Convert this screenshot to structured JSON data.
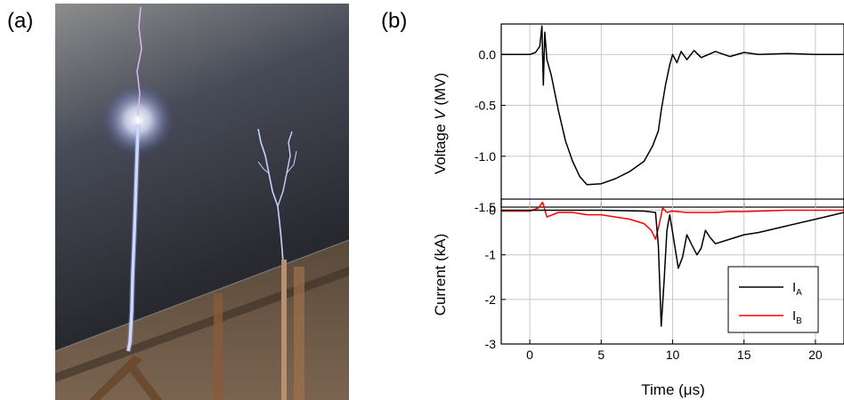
{
  "panels": {
    "a_label": "(a)",
    "b_label": "(b)"
  },
  "photo": {
    "description_icon": "lightning-discharge-photo-icon"
  },
  "colors": {
    "series_a": "#000000",
    "series_b": "#ff0000",
    "grid": "#c8c8c8"
  },
  "chart_data": [
    {
      "type": "line",
      "title": "",
      "xlabel": "",
      "ylabel": "Voltage V (MV)",
      "ylabel_parts": {
        "prefix": "Voltage ",
        "italic": "V",
        "suffix": " (MV)"
      },
      "xlim": [
        -2,
        22
      ],
      "ylim": [
        -1.5,
        0.3
      ],
      "yticks": [
        0.0,
        -0.5,
        -1.0,
        -1.5
      ],
      "ytick_labels": [
        "0.0",
        "-0.5",
        "-1.0",
        "-1.5"
      ],
      "grid": true,
      "series": [
        {
          "x": [
            -2,
            0,
            0.4,
            0.7,
            0.85,
            0.95,
            1.05,
            1.2,
            1.5,
            2,
            2.5,
            3,
            3.5,
            4,
            5,
            6,
            7,
            8,
            8.6,
            9,
            9.2,
            9.5,
            9.8,
            10,
            10.3,
            10.6,
            11,
            11.5,
            12,
            13,
            14,
            15,
            16,
            18,
            20,
            22
          ],
          "y": [
            0.0,
            0.0,
            0.02,
            0.08,
            0.28,
            -0.3,
            0.22,
            -0.05,
            -0.2,
            -0.55,
            -0.85,
            -1.05,
            -1.2,
            -1.28,
            -1.27,
            -1.22,
            -1.15,
            -1.05,
            -0.9,
            -0.75,
            -0.55,
            -0.3,
            -0.1,
            0.0,
            -0.08,
            0.03,
            -0.05,
            0.04,
            -0.03,
            0.03,
            -0.02,
            0.02,
            0.0,
            0.01,
            0.0,
            0.0
          ]
        }
      ]
    },
    {
      "type": "line",
      "title": "",
      "xlabel": "Time (μs)",
      "ylabel": "Current (kA)",
      "xlim": [
        -2,
        22
      ],
      "ylim": [
        -3,
        0.25
      ],
      "xticks": [
        0,
        5,
        10,
        15,
        20
      ],
      "xtick_labels": [
        "0",
        "5",
        "10",
        "15",
        "20"
      ],
      "yticks": [
        0,
        -1,
        -2,
        -3
      ],
      "ytick_labels": [
        "0",
        "-1",
        "-2",
        "-3"
      ],
      "grid": true,
      "legend_position": "bottom-right",
      "series": [
        {
          "name": "I_A",
          "label_main": "I",
          "label_sub": "A",
          "x": [
            -2,
            0,
            5,
            8,
            8.8,
            9.0,
            9.2,
            9.4,
            9.6,
            9.8,
            10.1,
            10.4,
            10.7,
            11,
            11.3,
            11.7,
            12,
            12.3,
            12.6,
            13,
            14,
            15,
            16,
            18,
            20,
            22
          ],
          "y": [
            0,
            0,
            0,
            -0.02,
            -0.05,
            -0.8,
            -2.6,
            -1.6,
            -0.45,
            -0.1,
            -0.7,
            -1.3,
            -1.05,
            -0.55,
            -0.75,
            -1.0,
            -0.85,
            -0.45,
            -0.6,
            -0.75,
            -0.65,
            -0.55,
            -0.5,
            -0.35,
            -0.2,
            -0.05
          ]
        },
        {
          "name": "I_B",
          "label_main": "I",
          "label_sub": "B",
          "x": [
            -2,
            0,
            0.6,
            0.9,
            1.2,
            2,
            3,
            4,
            5,
            6,
            7,
            8,
            8.5,
            8.8,
            9.0,
            9.3,
            9.6,
            10,
            11,
            12,
            13,
            14,
            15,
            16,
            18,
            20,
            22
          ],
          "y": [
            -0.02,
            -0.02,
            0.05,
            0.18,
            -0.15,
            -0.05,
            -0.05,
            -0.1,
            -0.1,
            -0.15,
            -0.2,
            -0.3,
            -0.45,
            -0.65,
            -0.4,
            0.05,
            -0.05,
            -0.02,
            -0.05,
            -0.05,
            -0.05,
            -0.03,
            -0.03,
            -0.02,
            0.0,
            0.0,
            0.0
          ]
        }
      ]
    }
  ]
}
